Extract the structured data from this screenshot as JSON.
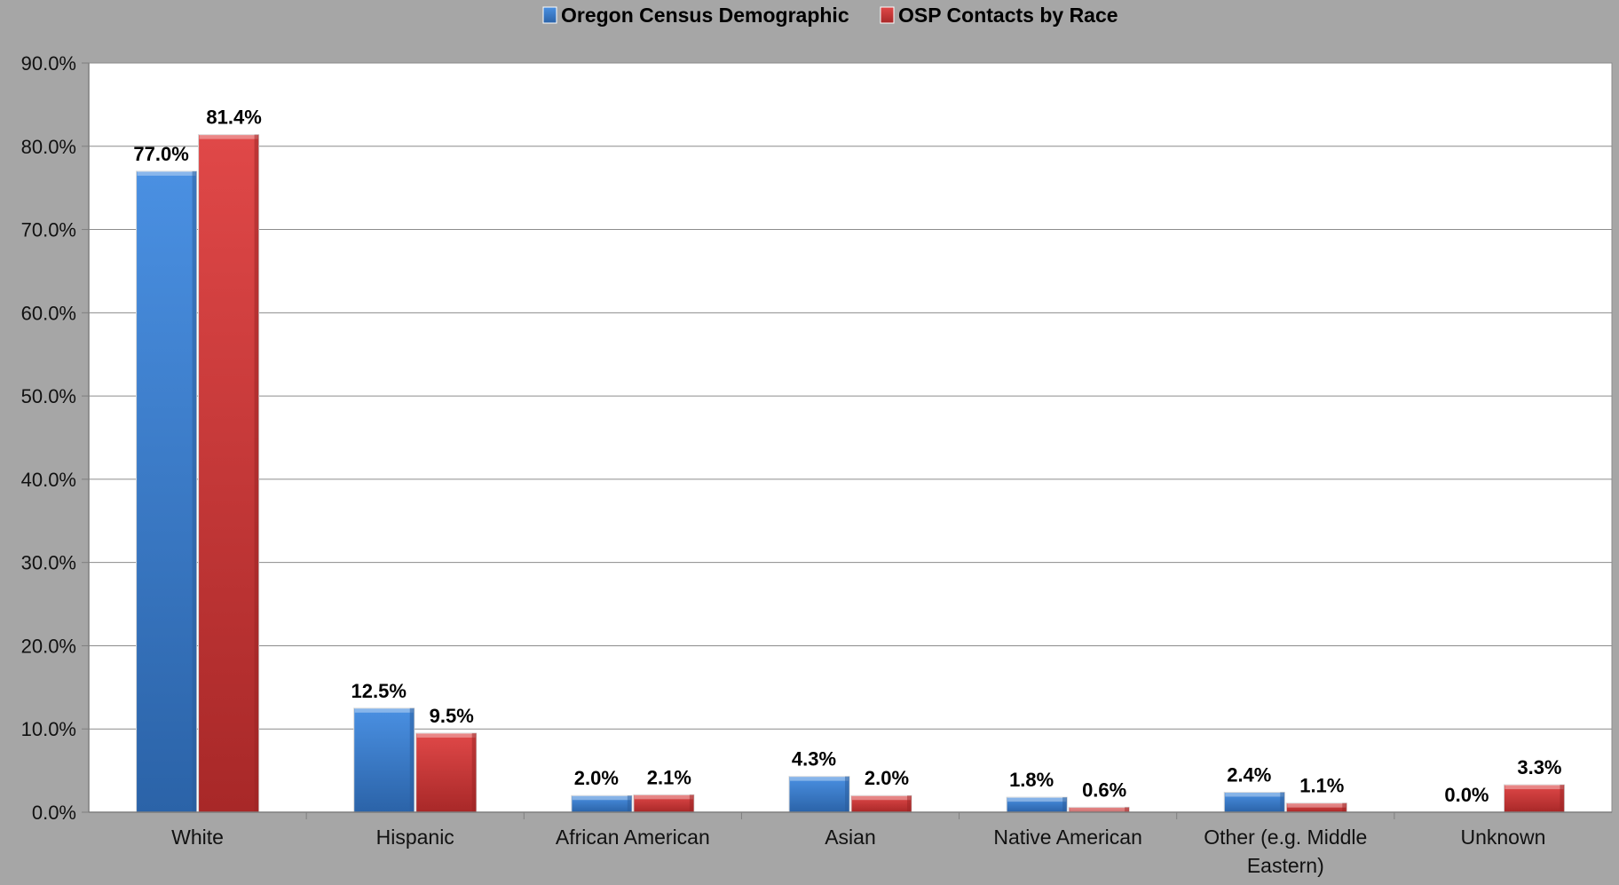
{
  "chart_data": {
    "type": "bar",
    "title": "",
    "xlabel": "",
    "ylabel": "",
    "categories": [
      "White",
      "Hispanic",
      "African American",
      "Asian",
      "Native American",
      "Other (e.g. Middle Eastern)",
      "Unknown"
    ],
    "series": [
      {
        "name": "Oregon Census Demographic",
        "color": "#3d7fd0",
        "values": [
          77.0,
          12.5,
          2.0,
          4.3,
          1.8,
          2.4,
          0.0
        ],
        "labels": [
          "77.0%",
          "12.5%",
          "2.0%",
          "4.3%",
          "1.8%",
          "2.4%",
          "0.0%"
        ]
      },
      {
        "name": "OSP Contacts by Race",
        "color": "#d23a3a",
        "values": [
          81.4,
          9.5,
          2.1,
          2.0,
          0.6,
          1.1,
          3.3
        ],
        "labels": [
          "81.4%",
          "9.5%",
          "2.1%",
          "2.0%",
          "0.6%",
          "1.1%",
          "3.3%"
        ]
      }
    ],
    "ylim": [
      0,
      90
    ],
    "yticks": [
      "0.0%",
      "10.0%",
      "20.0%",
      "30.0%",
      "40.0%",
      "50.0%",
      "60.0%",
      "70.0%",
      "80.0%",
      "90.0%"
    ],
    "grid": true,
    "legend_position": "top-center"
  }
}
